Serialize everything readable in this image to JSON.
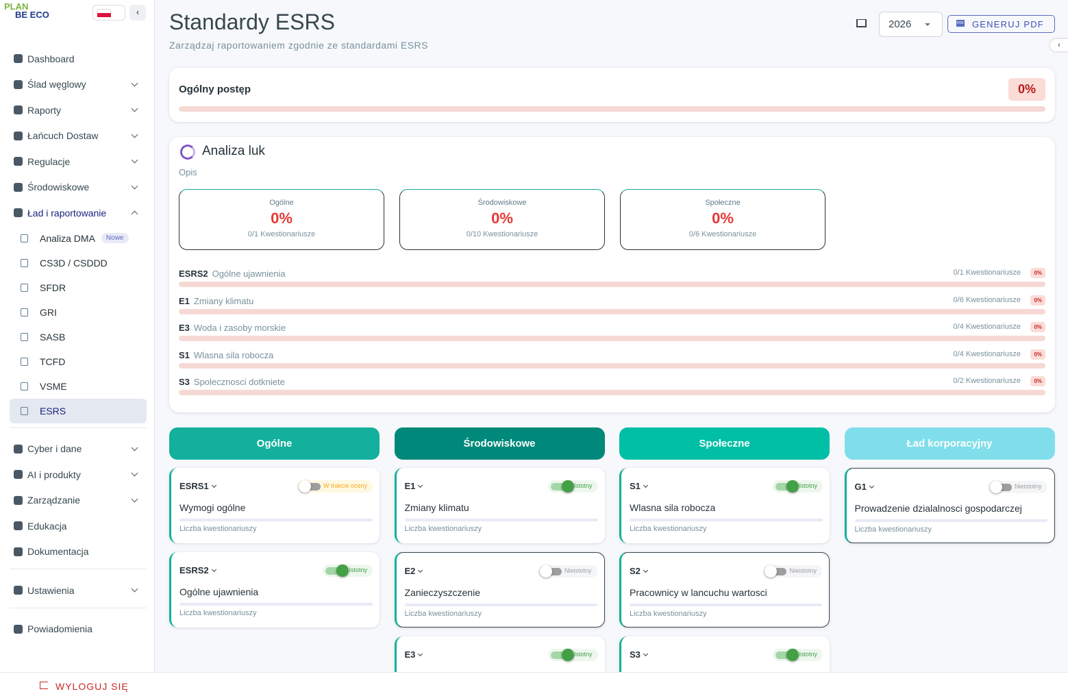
{
  "sidebar": {
    "logo": {
      "top": "PLAN",
      "bottom": "BE ECO"
    },
    "nav": [
      [
        {
          "label": "Dashboard"
        },
        {
          "label": "Ślad węglowy",
          "arrow": "down"
        },
        {
          "label": "Raporty",
          "arrow": "down"
        },
        {
          "label": "Łańcuch Dostaw",
          "arrow": "down"
        },
        {
          "label": "Regulacje",
          "arrow": "down"
        },
        {
          "label": "Środowiskowe",
          "arrow": "down"
        },
        {
          "label": "Ład i raportowanie",
          "arrow": "up",
          "expanded": true,
          "children": [
            {
              "label": "Analiza DMA",
              "badge": "Nowe"
            },
            {
              "label": "CS3D / CSDDD"
            },
            {
              "label": "SFDR"
            },
            {
              "label": "GRI"
            },
            {
              "label": "SASB"
            },
            {
              "label": "TCFD"
            },
            {
              "label": "VSME"
            },
            {
              "label": "ESRS",
              "active": true
            }
          ]
        }
      ],
      [
        {
          "label": "Cyber i dane",
          "arrow": "down"
        },
        {
          "label": "AI i produkty",
          "arrow": "down"
        },
        {
          "label": "Zarządzanie",
          "arrow": "down"
        },
        {
          "label": "Edukacja"
        },
        {
          "label": "Dokumentacja"
        }
      ],
      [
        {
          "label": "Ustawienia",
          "arrow": "down"
        }
      ],
      [
        {
          "label": "Powiadomienia"
        }
      ]
    ],
    "logout": "WYLOGUJ SIĘ"
  },
  "header": {
    "title": "Standardy ESRS",
    "subtitle": "Zarządzaj raportowaniem zgodnie ze standardami ESRS",
    "year": "2026",
    "pdf_icon": "PDF",
    "pdf_button": "GENERUJ PDF"
  },
  "progress": {
    "label": "Ogólny postęp",
    "value": "0%"
  },
  "gap_analysis": {
    "title": "Analiza luk",
    "description": "Opis",
    "cards": [
      {
        "label": "Ogólne",
        "value": "0%",
        "count": "0/1 Kwestionariusze"
      },
      {
        "label": "Środowiskowe",
        "value": "0%",
        "count": "0/10 Kwestionariusze"
      },
      {
        "label": "Społeczne",
        "value": "0%",
        "count": "0/6 Kwestionariusze"
      }
    ],
    "rows": [
      {
        "code": "ESRS2",
        "name": "Ogólne ujawnienia",
        "count": "0/1 Kwestionariusze",
        "value": "0%"
      },
      {
        "code": "E1",
        "name": "Zmiany klimatu",
        "count": "0/6 Kwestionariusze",
        "value": "0%"
      },
      {
        "code": "E3",
        "name": "Woda i zasoby morskie",
        "count": "0/4 Kwestionariusze",
        "value": "0%"
      },
      {
        "code": "S1",
        "name": "Wlasna sila robocza",
        "count": "0/4 Kwestionariusze",
        "value": "0%"
      },
      {
        "code": "S3",
        "name": "Spolecznosci dotkniete",
        "count": "0/2 Kwestionariusze",
        "value": "0%"
      }
    ]
  },
  "columns": [
    {
      "title": "Ogólne",
      "color": "#13b09d",
      "cards": [
        {
          "code": "ESRS1",
          "status": "W trakcie oceny",
          "enabled": false,
          "name": "Wymogi ogólne",
          "footer": "Liczba kwestionariuszy"
        },
        {
          "code": "ESRS2",
          "status": "Istotny",
          "enabled": true,
          "name": "Ogólne ujawnienia",
          "footer": "Liczba kwestionariuszy"
        }
      ]
    },
    {
      "title": "Środowiskowe",
      "color": "#00897b",
      "cards": [
        {
          "code": "E1",
          "status": "Istotny",
          "enabled": true,
          "name": "Zmiany klimatu",
          "footer": "Liczba kwestionariuszy"
        },
        {
          "code": "E2",
          "status": "Nieistotny",
          "enabled": false,
          "name": "Zanieczyszczenie",
          "footer": "Liczba kwestionariuszy"
        },
        {
          "code": "E3",
          "status": "Istotny",
          "enabled": true
        }
      ]
    },
    {
      "title": "Społeczne",
      "color": "#00bfa5",
      "cards": [
        {
          "code": "S1",
          "status": "Istotny",
          "enabled": true,
          "name": "Wlasna sila robocza",
          "footer": "Liczba kwestionariuszy"
        },
        {
          "code": "S2",
          "status": "Nieistotny",
          "enabled": false,
          "name": "Pracownicy w lancuchu wartosci",
          "footer": "Liczba kwestionariuszy"
        },
        {
          "code": "S3",
          "status": "Istotny",
          "enabled": true
        }
      ]
    },
    {
      "title": "Ład korporacyjny",
      "color": "#80deea",
      "cards": [
        {
          "code": "G1",
          "status": "Nieistotny",
          "enabled": false,
          "name": "Prowadzenie dzialalnosci gospodarczej",
          "footer": "Liczba kwestionariuszy"
        }
      ]
    }
  ]
}
